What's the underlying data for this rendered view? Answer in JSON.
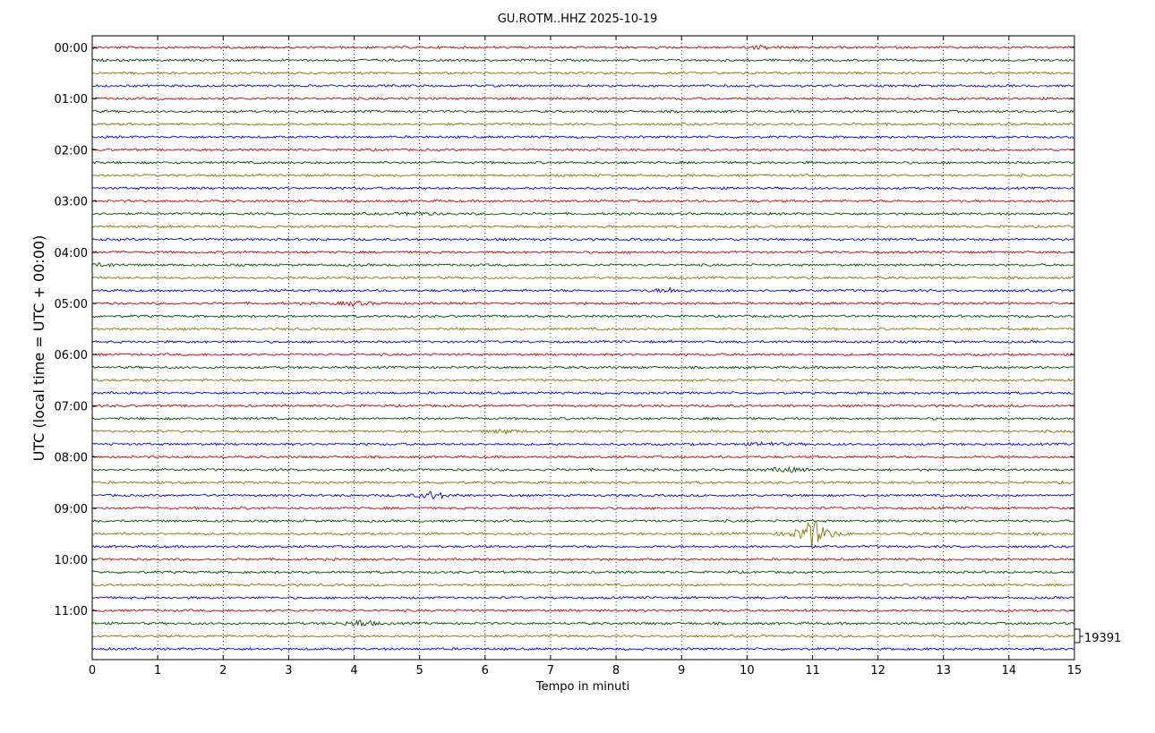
{
  "chart_data": {
    "type": "line",
    "title": "GU.ROTM..HHZ 2025-10-19",
    "xlabel": "Tempo in minuti",
    "ylabel": "UTC (local time = UTC + 00:00)",
    "xlim": [
      0,
      15
    ],
    "x_ticks": [
      "0",
      "1",
      "2",
      "3",
      "4",
      "5",
      "6",
      "7",
      "8",
      "9",
      "10",
      "11",
      "12",
      "13",
      "14",
      "15"
    ],
    "y_ticks": [
      "00:00",
      "01:00",
      "02:00",
      "03:00",
      "04:00",
      "05:00",
      "06:00",
      "07:00",
      "08:00",
      "09:00",
      "10:00",
      "11:00"
    ],
    "grid": "dotted vertical",
    "trace_interval_minutes": 15,
    "trace_start": "00:00",
    "trace_count": 48,
    "trace_colors": [
      "#cc0000",
      "#004d00",
      "#8b7500",
      "#0000ee"
    ],
    "scale_label": "19391",
    "events": [
      {
        "trace": 38,
        "minute": 11.0,
        "amplitude": 1.0
      },
      {
        "trace": 35,
        "minute": 5.2,
        "amplitude": 0.25
      },
      {
        "trace": 45,
        "minute": 4.1,
        "amplitude": 0.22
      },
      {
        "trace": 33,
        "minute": 10.6,
        "amplitude": 0.18
      },
      {
        "trace": 19,
        "minute": 8.8,
        "amplitude": 0.15
      },
      {
        "trace": 20,
        "minute": 4.0,
        "amplitude": 0.15
      },
      {
        "trace": 30,
        "minute": 6.3,
        "amplitude": 0.12
      },
      {
        "trace": 31,
        "minute": 10.3,
        "amplitude": 0.12
      },
      {
        "trace": 0,
        "minute": 10.2,
        "amplitude": 0.1
      },
      {
        "trace": 13,
        "minute": 5.0,
        "amplitude": 0.1
      },
      {
        "trace": 17,
        "minute": 0.2,
        "amplitude": 0.1
      }
    ]
  }
}
